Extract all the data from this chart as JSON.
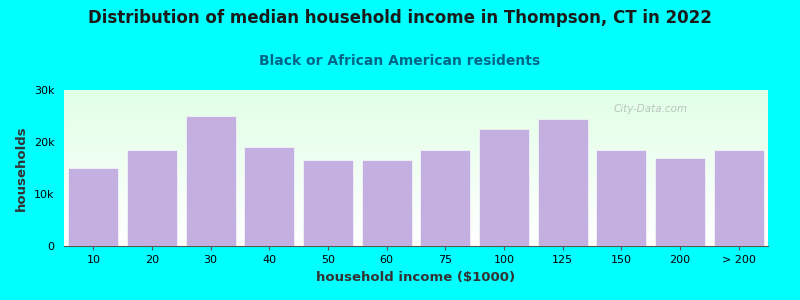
{
  "title": "Distribution of median household income in Thompson, CT in 2022",
  "subtitle": "Black or African American residents",
  "xlabel": "household income ($1000)",
  "ylabel": "households",
  "bar_color": "#c4b0e0",
  "background_color": "#00ffff",
  "categories": [
    "10",
    "20",
    "30",
    "40",
    "50",
    "60",
    "75",
    "100",
    "125",
    "150",
    "200",
    "> 200"
  ],
  "values": [
    15000,
    18500,
    25000,
    19000,
    16500,
    16500,
    18500,
    22500,
    24500,
    18500,
    17000,
    18500
  ],
  "ylim": [
    0,
    30000
  ],
  "yticks": [
    0,
    10000,
    20000,
    30000
  ],
  "title_fontsize": 12,
  "subtitle_fontsize": 10,
  "axis_label_fontsize": 9.5,
  "tick_fontsize": 8
}
